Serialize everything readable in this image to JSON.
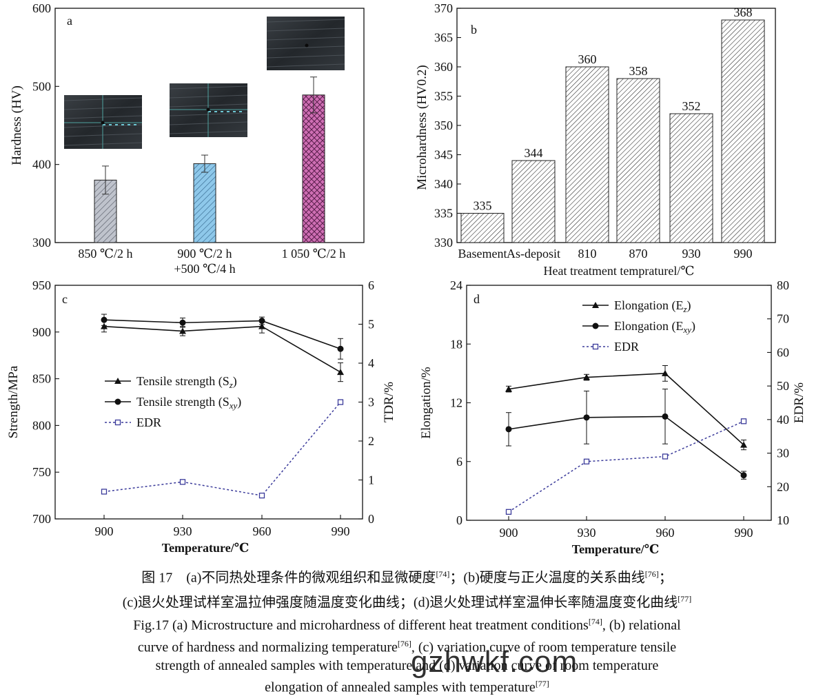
{
  "chart_data": [
    {
      "panel": "a",
      "type": "bar",
      "categories": [
        [
          "850 ℃/2 h"
        ],
        [
          "900 ℃/2 h",
          "+500 ℃/4 h"
        ],
        [
          "1 050 ℃/2 h"
        ]
      ],
      "values": [
        380,
        401,
        489
      ],
      "errors": [
        18,
        11,
        23
      ],
      "ylabel": "Hardness (HV)",
      "ylim": [
        300,
        600
      ],
      "yticks": [
        300,
        400,
        500,
        600
      ],
      "colors": [
        "#b8bcc6",
        "#8ec5e8",
        "#c766ad"
      ],
      "patterns": [
        "diagonal",
        "diagonal",
        "crosshatch"
      ]
    },
    {
      "panel": "b",
      "type": "bar",
      "categories": [
        "Basement",
        "As-deposit",
        "810",
        "870",
        "930",
        "990"
      ],
      "values": [
        335,
        344,
        360,
        358,
        352,
        368
      ],
      "value_labels": [
        "335",
        "344",
        "360",
        "358",
        "352",
        "368"
      ],
      "xlabel": "Heat treatment tempraturel/℃",
      "ylabel": "Microhardness (HV0.2)",
      "ylim": [
        330,
        370
      ],
      "yticks": [
        330,
        335,
        340,
        345,
        350,
        355,
        360,
        365,
        370
      ]
    },
    {
      "panel": "c",
      "type": "line",
      "x": [
        900,
        930,
        960,
        990
      ],
      "xlabel": "Temperature/℃",
      "ylabel": "Strength/MPa",
      "y2label": "TDR/%",
      "ylim": [
        700,
        950
      ],
      "y2lim": [
        0,
        6
      ],
      "yticks": [
        700,
        750,
        800,
        850,
        900,
        950
      ],
      "y2ticks": [
        0,
        1,
        2,
        3,
        4,
        5,
        6
      ],
      "series": [
        {
          "name": "Tensile strength (S",
          "sub": "z",
          "close": ")",
          "marker": "triangle",
          "axis": "left",
          "values": [
            906,
            901,
            906,
            857
          ],
          "errors": [
            6,
            5,
            7,
            10
          ]
        },
        {
          "name": "Tensile strength (S",
          "sub": "xy",
          "close": ")",
          "marker": "circle",
          "axis": "left",
          "values": [
            913,
            910,
            912,
            882
          ],
          "errors": [
            6,
            5,
            4,
            11
          ]
        },
        {
          "name": "EDR",
          "sub": "",
          "close": "",
          "marker": "square",
          "axis": "right",
          "values": [
            0.7,
            0.95,
            0.6,
            3.0
          ],
          "errors": [
            0,
            0,
            0,
            0
          ]
        }
      ]
    },
    {
      "panel": "d",
      "type": "line",
      "x": [
        900,
        930,
        960,
        990
      ],
      "xlabel": "Temperature/℃",
      "ylabel": "Elongation/%",
      "y2label": "EDR/%",
      "ylim": [
        0,
        24
      ],
      "y2lim": [
        10,
        80
      ],
      "yticks": [
        0,
        6,
        12,
        18,
        24
      ],
      "y2ticks": [
        10,
        20,
        30,
        40,
        50,
        60,
        70,
        80
      ],
      "series": [
        {
          "name": "Elongation (E",
          "sub": "z",
          "close": ")",
          "marker": "triangle",
          "axis": "left",
          "values": [
            13.4,
            14.6,
            15.0,
            7.7
          ],
          "errors": [
            0.3,
            0.3,
            0.8,
            0.5
          ]
        },
        {
          "name": "Elongation (E",
          "sub": "xy",
          "close": ")",
          "marker": "circle",
          "axis": "left",
          "values": [
            9.3,
            10.5,
            10.6,
            4.6
          ],
          "errors": [
            1.7,
            2.7,
            2.8,
            0.4
          ]
        },
        {
          "name": "EDR",
          "sub": "",
          "close": "",
          "marker": "square",
          "axis": "right",
          "values": [
            12.5,
            27.5,
            29.0,
            39.5
          ],
          "errors": [
            0,
            0,
            0,
            0
          ]
        }
      ]
    }
  ],
  "caption": {
    "cn1": {
      "a": "图 17　(a)不同热处理条件的微观组织和显微硬度",
      "r1": "[74]",
      "b": "；(b)硬度与正火温度的关系曲线",
      "r2": "[76]",
      "c": "；"
    },
    "cn2": {
      "a": "(c)退火处理试样室温拉伸强度随温度变化曲线；(d)退火处理试样室温伸长率随温度变化曲线",
      "r1": "[77]"
    },
    "en1": {
      "a": "Fig.17 (a) Microstructure and microhardness of different heat treatment conditions",
      "r1": "[74]",
      "b": ", (b) relational"
    },
    "en2": {
      "a": "curve of hardness and normalizing temperature",
      "r1": "[76]",
      "b": ", (c) variation curve of room temperature tensile"
    },
    "en3": {
      "a": "strength of annealed samples with temperature and (d) variation curve of room temperature"
    },
    "en4": {
      "a": "elongation of annealed samples with temperature",
      "r1": "[77]"
    }
  },
  "watermark": "gzhwkf.com"
}
